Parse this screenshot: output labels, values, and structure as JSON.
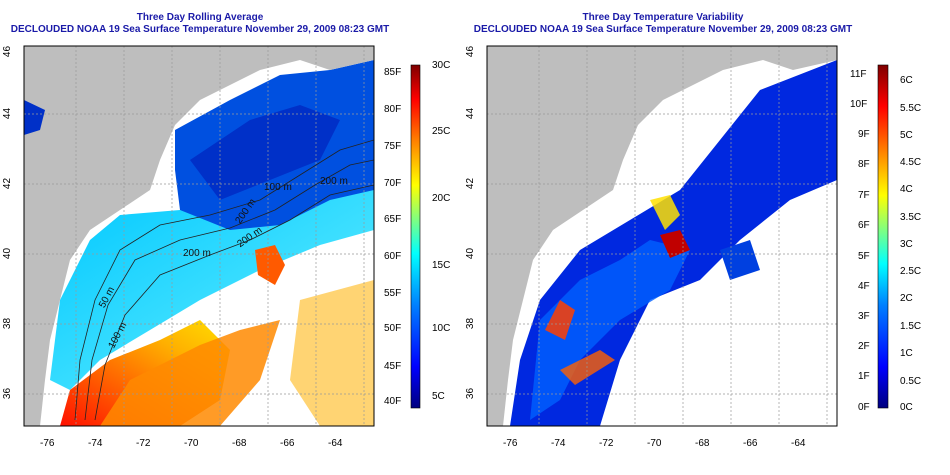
{
  "left_panel": {
    "title_line1": "Three Day Rolling Average",
    "title_line2": "DECLOUDED NOAA 19 Sea Surface Temperature November 29, 2009 08:23 GMT",
    "lat_ticks": [
      "36",
      "38",
      "40",
      "42",
      "44",
      "46"
    ],
    "lon_ticks": [
      "-76",
      "-74",
      "-72",
      "-70",
      "-68",
      "-66",
      "-64"
    ],
    "contour_labels": [
      "50 m",
      "100 m",
      "200 m",
      "200 m",
      "200 m",
      "100 m",
      "200 m"
    ],
    "colorbar_f": [
      "40F",
      "45F",
      "50F",
      "55F",
      "60F",
      "65F",
      "70F",
      "75F",
      "80F",
      "85F"
    ],
    "colorbar_c": [
      "5C",
      "10C",
      "15C",
      "20C",
      "25C",
      "30C"
    ],
    "colors": [
      "#00007f",
      "#0000ff",
      "#0080ff",
      "#00ffff",
      "#80ff80",
      "#ffff00",
      "#ff8000",
      "#ff0000",
      "#7f0000"
    ]
  },
  "right_panel": {
    "title_line1": "Three Day Temperature Variability",
    "title_line2": "DECLOUDED NOAA 19 Sea Surface Temperature November 29, 2009 08:23 GMT",
    "lat_ticks": [
      "36",
      "38",
      "40",
      "42",
      "44",
      "46"
    ],
    "lon_ticks": [
      "-76",
      "-74",
      "-72",
      "-70",
      "-68",
      "-66",
      "-64"
    ],
    "colorbar_f": [
      "0F",
      "1F",
      "2F",
      "3F",
      "4F",
      "5F",
      "6F",
      "7F",
      "8F",
      "9F",
      "10F",
      "11F"
    ],
    "colorbar_c": [
      "0C",
      "0.5C",
      "1C",
      "1.5C",
      "2C",
      "2.5C",
      "3C",
      "3.5C",
      "4C",
      "4.5C",
      "5C",
      "5.5C",
      "6C"
    ],
    "colors": [
      "#00007f",
      "#0000ff",
      "#0080ff",
      "#00ffff",
      "#80ff80",
      "#ffff00",
      "#ff8000",
      "#ff0000",
      "#7f0000"
    ]
  },
  "map_colors": {
    "land": "#bebebe",
    "cloud": "#ffffff",
    "frame": "#000000",
    "title": "#1a1aa8"
  }
}
